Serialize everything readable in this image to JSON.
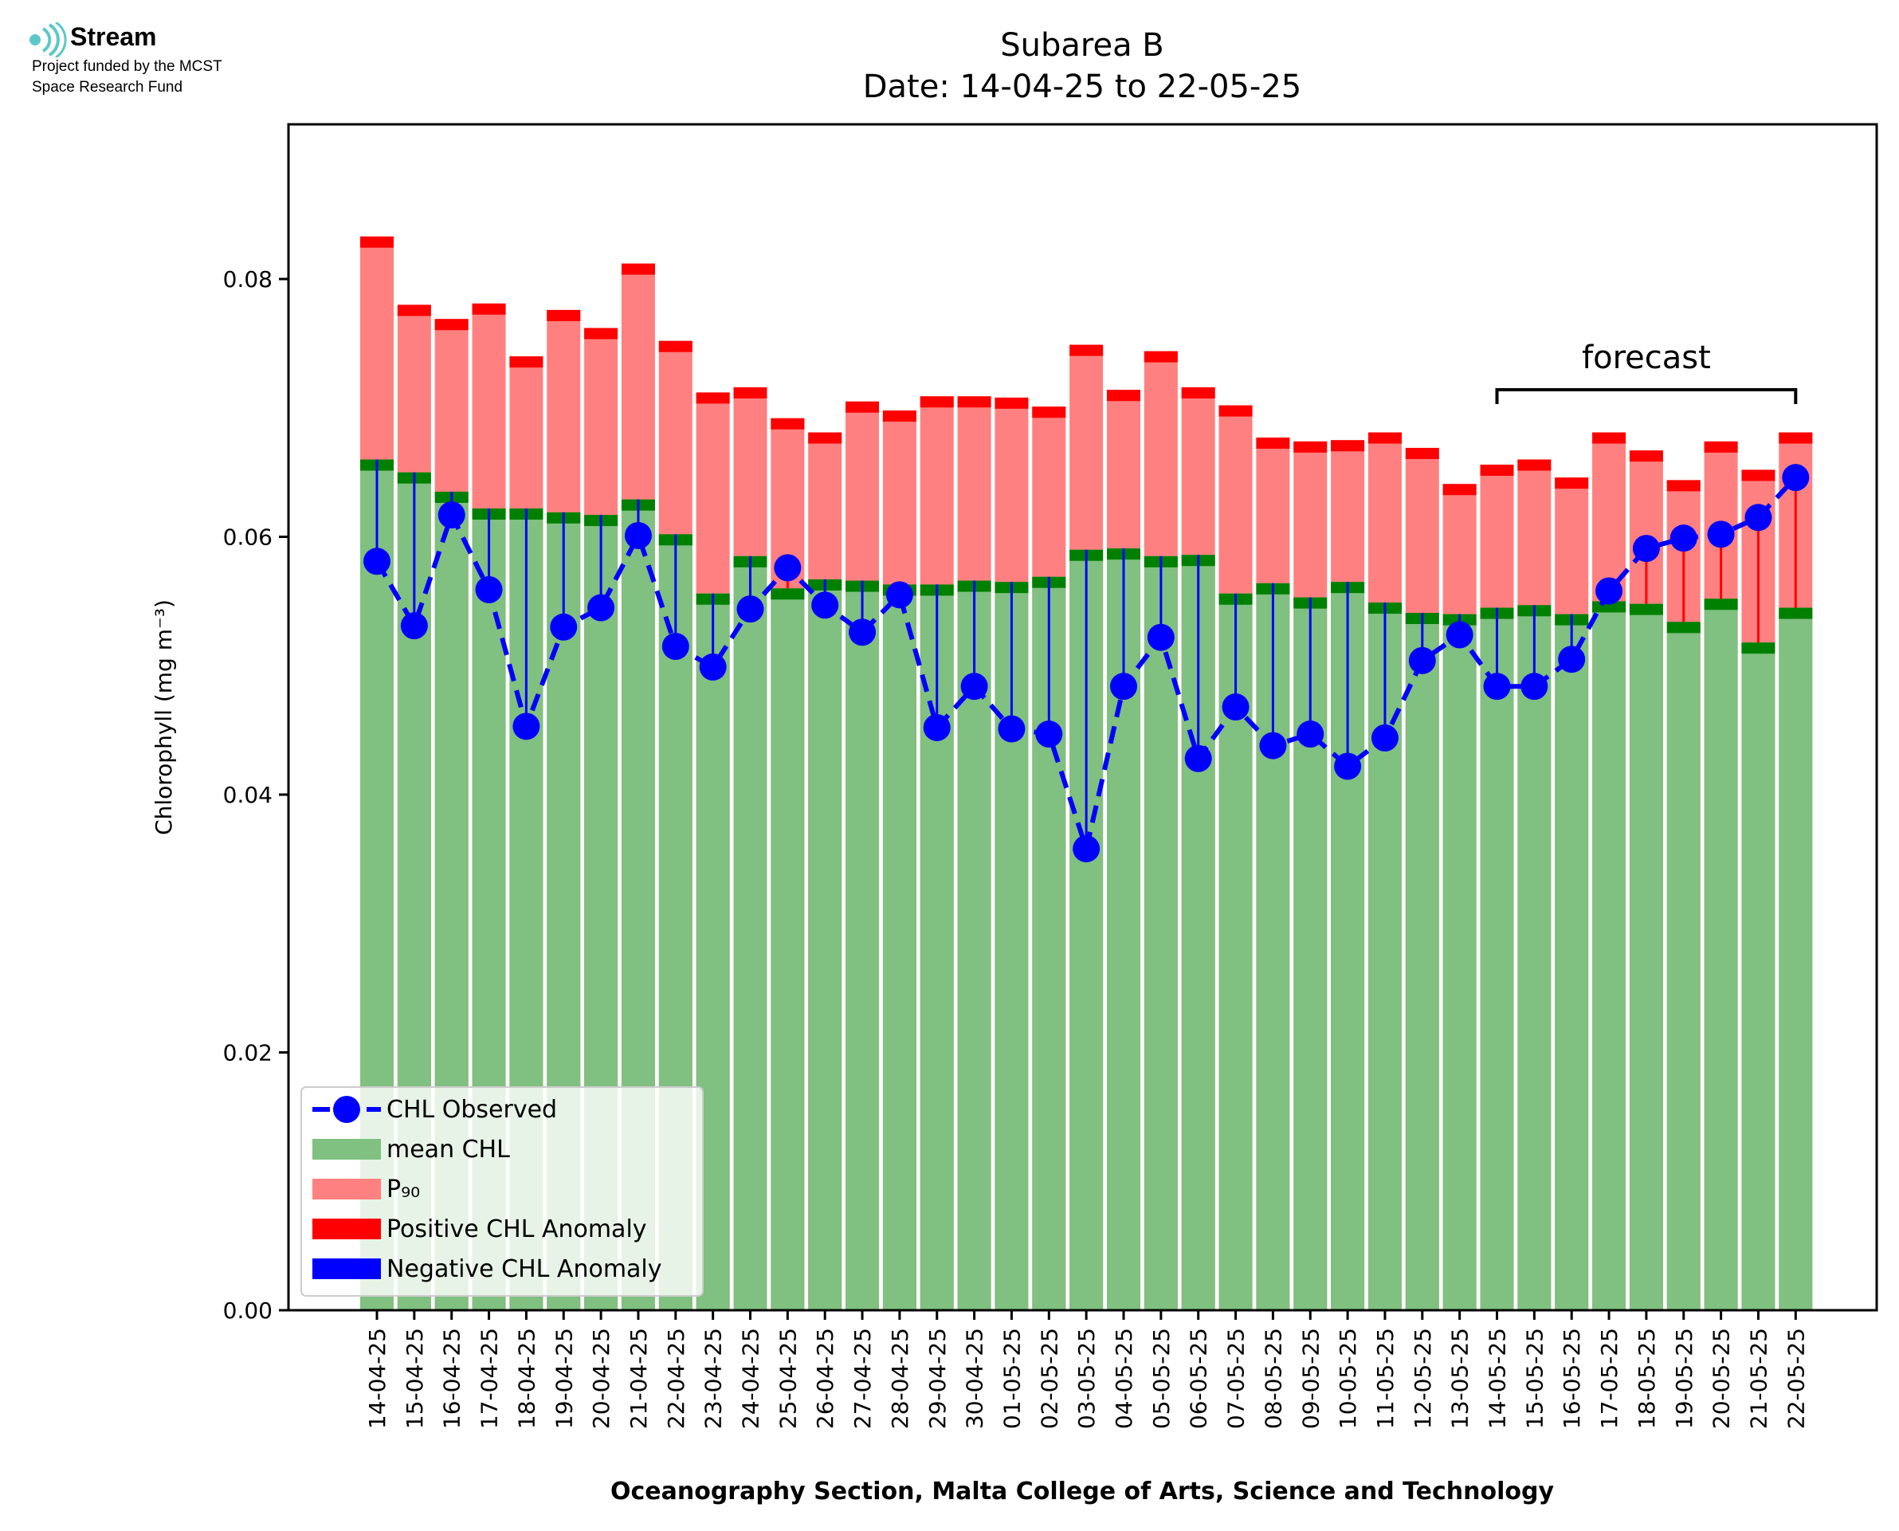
{
  "logo": {
    "name": "Stream",
    "line1": "Project funded by the MCST",
    "line2": "Space Research Fund",
    "color": "#5bc8c8"
  },
  "chart_data": {
    "type": "bar",
    "title": "Subarea B",
    "subtitle": "Date: 14-04-25 to 22-05-25",
    "xlabel": "Oceanography Section, Malta College of Arts, Science and Technology",
    "ylabel": "Chlorophyll (mg m⁻³)",
    "ylim": [
      0,
      0.092
    ],
    "yticks": [
      0.0,
      0.02,
      0.04,
      0.06,
      0.08
    ],
    "ytick_labels": [
      "0.00",
      "0.02",
      "0.04",
      "0.06",
      "0.08"
    ],
    "grid": false,
    "legend_position": "lower-left",
    "categories": [
      "14-04-25",
      "15-04-25",
      "16-04-25",
      "17-04-25",
      "18-04-25",
      "19-04-25",
      "20-04-25",
      "21-04-25",
      "22-04-25",
      "23-04-25",
      "24-04-25",
      "25-04-25",
      "26-04-25",
      "27-04-25",
      "28-04-25",
      "29-04-25",
      "30-04-25",
      "01-05-25",
      "02-05-25",
      "03-05-25",
      "04-05-25",
      "05-05-25",
      "06-05-25",
      "07-05-25",
      "08-05-25",
      "09-05-25",
      "10-05-25",
      "11-05-25",
      "12-05-25",
      "13-05-25",
      "14-05-25",
      "15-05-25",
      "16-05-25",
      "17-05-25",
      "18-05-25",
      "19-05-25",
      "20-05-25",
      "21-05-25",
      "22-05-25"
    ],
    "series": [
      {
        "name": "mean CHL",
        "color": "#80c080",
        "edge_color": "#008000",
        "values": [
          0.066,
          0.065,
          0.0635,
          0.0622,
          0.0622,
          0.0619,
          0.0617,
          0.0629,
          0.0602,
          0.0556,
          0.0585,
          0.056,
          0.0567,
          0.0566,
          0.0563,
          0.0563,
          0.0566,
          0.0565,
          0.0569,
          0.059,
          0.0591,
          0.0585,
          0.0586,
          0.0556,
          0.0564,
          0.0553,
          0.0565,
          0.0549,
          0.0541,
          0.054,
          0.0545,
          0.0547,
          0.054,
          0.055,
          0.0548,
          0.0534,
          0.0552,
          0.0518,
          0.0545
        ]
      },
      {
        "name": "P₉₀",
        "color": "#ff8080",
        "edge_color": "#ff0000",
        "values": [
          0.0833,
          0.078,
          0.0769,
          0.0781,
          0.074,
          0.0776,
          0.0762,
          0.0812,
          0.0752,
          0.0712,
          0.0716,
          0.0692,
          0.0681,
          0.0705,
          0.0698,
          0.0709,
          0.0709,
          0.0708,
          0.0701,
          0.0749,
          0.0714,
          0.0744,
          0.0716,
          0.0702,
          0.0677,
          0.0674,
          0.0675,
          0.0681,
          0.0669,
          0.0641,
          0.0656,
          0.066,
          0.0646,
          0.0681,
          0.0667,
          0.0644,
          0.0674,
          0.0652,
          0.0681
        ]
      },
      {
        "name": "CHL Observed",
        "color": "#0000ff",
        "values": [
          0.0581,
          0.0531,
          0.0617,
          0.0559,
          0.0453,
          0.053,
          0.0545,
          0.0601,
          0.0515,
          0.0499,
          0.0544,
          0.0576,
          0.0547,
          0.0526,
          0.0555,
          0.0452,
          0.0484,
          0.0451,
          0.0447,
          0.0358,
          0.0484,
          0.0522,
          0.0428,
          0.0468,
          0.0438,
          0.0447,
          0.0422,
          0.0444,
          0.0504,
          0.0524,
          0.0484,
          0.0484,
          0.0505,
          0.0558,
          0.0591,
          0.0599,
          0.0602,
          0.0615,
          0.0646
        ]
      }
    ],
    "legend": [
      {
        "label": "CHL Observed",
        "kind": "line-marker",
        "color": "#0000ff"
      },
      {
        "label": "mean CHL",
        "kind": "patch",
        "color": "#80c080"
      },
      {
        "label": "P₉₀",
        "kind": "patch",
        "color": "#ff8080"
      },
      {
        "label": "Positive CHL Anomaly",
        "kind": "patch",
        "color": "#ff0000"
      },
      {
        "label": "Negative CHL Anomaly",
        "kind": "patch",
        "color": "#0000ff"
      }
    ],
    "annotation": {
      "text": "forecast",
      "from_category": "14-05-25",
      "to_category": "22-05-25"
    }
  }
}
